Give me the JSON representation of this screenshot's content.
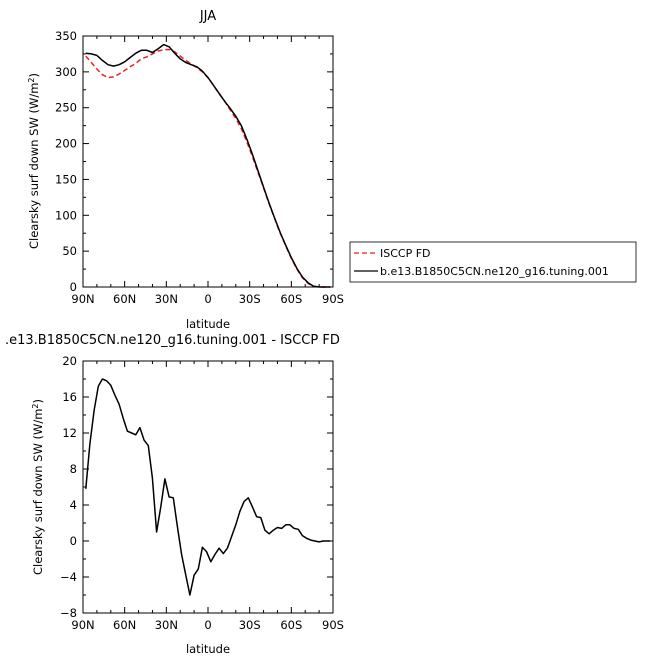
{
  "chart_data": [
    {
      "type": "line",
      "title": "JJA",
      "xlabel": "latitude",
      "ylabel": "Clearsky surf down SW (W/m²)",
      "ylabel_main": "Clearsky surf down SW (W/m",
      "ylabel_sup": "2",
      "ylabel_tail": ")",
      "xlim": [
        90,
        -90
      ],
      "ylim": [
        0,
        350
      ],
      "xticks": [
        90,
        60,
        30,
        0,
        -30,
        -60,
        -90
      ],
      "xtick_labels": [
        "90N",
        "60N",
        "30N",
        "0",
        "30S",
        "60S",
        "90S"
      ],
      "yticks": [
        0,
        50,
        100,
        150,
        200,
        250,
        300,
        350
      ],
      "ytick_labels": [
        "0",
        "50",
        "100",
        "150",
        "200",
        "250",
        "300",
        "350"
      ],
      "legend_position": "right",
      "series": [
        {
          "name": "ISCCP FD",
          "color": "#e8231f",
          "dash": "dashed",
          "points": [
            [
              88,
              322
            ],
            [
              84,
              313
            ],
            [
              80,
              304
            ],
            [
              76,
              296
            ],
            [
              72,
              292
            ],
            [
              68,
              293
            ],
            [
              64,
              297
            ],
            [
              60,
              302
            ],
            [
              56,
              307
            ],
            [
              52,
              312
            ],
            [
              48,
              318
            ],
            [
              44,
              321
            ],
            [
              40,
              325
            ],
            [
              36,
              329
            ],
            [
              32,
              331
            ],
            [
              28,
              331
            ],
            [
              24,
              328
            ],
            [
              20,
              322
            ],
            [
              16,
              316
            ],
            [
              12,
              311
            ],
            [
              8,
              306
            ],
            [
              4,
              300
            ],
            [
              0,
              292
            ],
            [
              -4,
              281
            ],
            [
              -8,
              270
            ],
            [
              -12,
              259
            ],
            [
              -16,
              247
            ],
            [
              -20,
              235
            ],
            [
              -24,
              221
            ],
            [
              -28,
              202
            ],
            [
              -32,
              182
            ],
            [
              -36,
              160
            ],
            [
              -40,
              138
            ],
            [
              -44,
              116
            ],
            [
              -48,
              95
            ],
            [
              -52,
              75
            ],
            [
              -56,
              57
            ],
            [
              -60,
              40
            ],
            [
              -64,
              25
            ],
            [
              -68,
              13
            ],
            [
              -72,
              5
            ],
            [
              -76,
              1
            ],
            [
              -80,
              0
            ],
            [
              -84,
              0
            ],
            [
              -88,
              0
            ]
          ]
        },
        {
          "name": "b.e13.B1850C5CN.ne120_g16.tuning.001",
          "color": "#000000",
          "dash": "solid",
          "points": [
            [
              88,
              326
            ],
            [
              84,
              325
            ],
            [
              80,
              323
            ],
            [
              76,
              316
            ],
            [
              72,
              310
            ],
            [
              68,
              308
            ],
            [
              64,
              310
            ],
            [
              60,
              314
            ],
            [
              56,
              320
            ],
            [
              52,
              326
            ],
            [
              48,
              330
            ],
            [
              44,
              330
            ],
            [
              40,
              327
            ],
            [
              36,
              332
            ],
            [
              32,
              338
            ],
            [
              28,
              335
            ],
            [
              24,
              326
            ],
            [
              20,
              318
            ],
            [
              16,
              313
            ],
            [
              12,
              310
            ],
            [
              8,
              307
            ],
            [
              4,
              301
            ],
            [
              0,
              292
            ],
            [
              -4,
              281
            ],
            [
              -8,
              270
            ],
            [
              -12,
              259
            ],
            [
              -16,
              249
            ],
            [
              -20,
              238
            ],
            [
              -24,
              225
            ],
            [
              -28,
              206
            ],
            [
              -32,
              185
            ],
            [
              -36,
              162
            ],
            [
              -40,
              139
            ],
            [
              -44,
              117
            ],
            [
              -48,
              96
            ],
            [
              -52,
              76
            ],
            [
              -56,
              58
            ],
            [
              -60,
              41
            ],
            [
              -64,
              26
            ],
            [
              -68,
              14
            ],
            [
              -72,
              6
            ],
            [
              -76,
              1
            ],
            [
              -80,
              0
            ],
            [
              -84,
              0
            ],
            [
              -88,
              0
            ]
          ]
        }
      ]
    },
    {
      "type": "line",
      "title": ".e13.B1850C5CN.ne120_g16.tuning.001 - ISCCP FD",
      "xlabel": "latitude",
      "ylabel": "Clearsky surf down SW (W/m²)",
      "ylabel_main": "Clearsky surf down SW (W/m",
      "ylabel_sup": "2",
      "ylabel_tail": ")",
      "xlim": [
        90,
        -90
      ],
      "ylim": [
        -8,
        20
      ],
      "xticks": [
        90,
        60,
        30,
        0,
        -30,
        -60,
        -90
      ],
      "xtick_labels": [
        "90N",
        "60N",
        "30N",
        "0",
        "30S",
        "60S",
        "90S"
      ],
      "yticks": [
        -8,
        -4,
        0,
        4,
        8,
        12,
        16,
        20
      ],
      "ytick_labels": [
        "−8",
        "−4",
        "0",
        "4",
        "8",
        "12",
        "16",
        "20"
      ],
      "series": [
        {
          "color": "#000000",
          "dash": "solid",
          "points": [
            [
              88,
              5.8
            ],
            [
              85,
              10.8
            ],
            [
              82,
              14.5
            ],
            [
              79,
              17.2
            ],
            [
              76,
              18.0
            ],
            [
              73,
              17.8
            ],
            [
              70,
              17.3
            ],
            [
              67,
              16.2
            ],
            [
              64,
              15.2
            ],
            [
              61,
              13.6
            ],
            [
              58,
              12.2
            ],
            [
              55,
              12.0
            ],
            [
              52,
              11.8
            ],
            [
              49,
              12.6
            ],
            [
              46,
              11.2
            ],
            [
              43,
              10.6
            ],
            [
              40,
              7.0
            ],
            [
              37,
              1.0
            ],
            [
              34,
              3.8
            ],
            [
              31,
              6.9
            ],
            [
              28,
              4.9
            ],
            [
              25,
              4.8
            ],
            [
              22,
              1.6
            ],
            [
              19,
              -1.5
            ],
            [
              16,
              -3.8
            ],
            [
              13,
              -6.0
            ],
            [
              10,
              -3.8
            ],
            [
              7,
              -3.1
            ],
            [
              4,
              -0.7
            ],
            [
              1,
              -1.2
            ],
            [
              -2,
              -2.3
            ],
            [
              -5,
              -1.5
            ],
            [
              -8,
              -0.8
            ],
            [
              -11,
              -1.4
            ],
            [
              -14,
              -0.8
            ],
            [
              -17,
              0.5
            ],
            [
              -20,
              1.8
            ],
            [
              -23,
              3.3
            ],
            [
              -26,
              4.4
            ],
            [
              -29,
              4.8
            ],
            [
              -32,
              3.8
            ],
            [
              -35,
              2.7
            ],
            [
              -38,
              2.6
            ],
            [
              -41,
              1.2
            ],
            [
              -44,
              0.8
            ],
            [
              -47,
              1.2
            ],
            [
              -50,
              1.5
            ],
            [
              -53,
              1.4
            ],
            [
              -56,
              1.8
            ],
            [
              -59,
              1.8
            ],
            [
              -62,
              1.4
            ],
            [
              -65,
              1.3
            ],
            [
              -68,
              0.6
            ],
            [
              -71,
              0.3
            ],
            [
              -74,
              0.1
            ],
            [
              -77,
              0.0
            ],
            [
              -80,
              -0.1
            ],
            [
              -83,
              0.0
            ],
            [
              -86,
              0.0
            ],
            [
              -88,
              0.0
            ]
          ]
        }
      ]
    }
  ]
}
